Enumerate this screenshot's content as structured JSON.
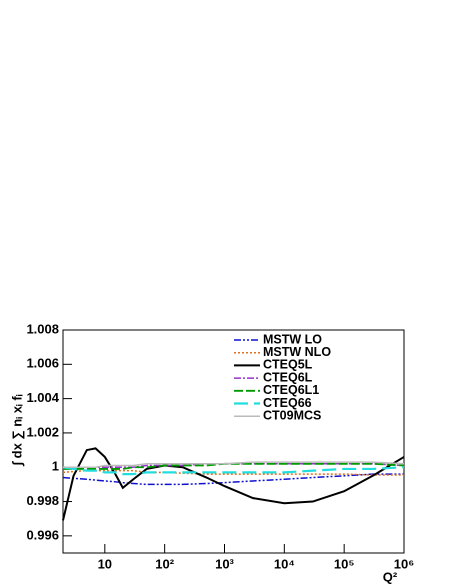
{
  "chart_data": {
    "type": "line",
    "log_x": true,
    "xlabel": "Q²",
    "ylabel": "∫ dx ∑ nᵢ xᵢ fᵢ",
    "x": [
      2,
      3,
      5,
      7,
      10,
      15,
      20,
      30,
      50,
      100,
      200,
      500,
      1000,
      3000,
      10000,
      30000,
      100000,
      300000,
      1000000
    ],
    "xlim": [
      2,
      1000000
    ],
    "xticks": [
      10,
      {
        "value": 100,
        "label": "10²"
      },
      {
        "value": 1000,
        "label": "10³"
      },
      {
        "value": 10000,
        "label": "10⁴"
      },
      {
        "value": 100000,
        "label": "10⁵"
      },
      {
        "value": 1000000,
        "label": "10⁶"
      }
    ],
    "ylim": [
      0.995,
      1.008
    ],
    "yticks": [
      0.996,
      0.998,
      1,
      1.002,
      1.004,
      1.006,
      1.008
    ],
    "series": [
      {
        "name": "MSTW LO",
        "color": "#1010d0",
        "dash": "7,2,2,2,2,2",
        "width": 1.5,
        "values": [
          0.9994,
          0.99935,
          0.9993,
          0.99925,
          0.9992,
          0.99915,
          0.9991,
          0.99905,
          0.999,
          0.999,
          0.999,
          0.99905,
          0.9991,
          0.9992,
          0.9993,
          0.9994,
          0.9995,
          0.9996,
          0.9996
        ]
      },
      {
        "name": "MSTW NLO",
        "color": "#e07020",
        "dash": "2,2",
        "width": 1.5,
        "values": [
          0.9997,
          0.99975,
          0.9998,
          0.9998,
          0.9998,
          0.9998,
          0.9998,
          0.9998,
          0.9997,
          0.9997,
          0.99965,
          0.9996,
          0.9996,
          0.9996,
          0.9996,
          0.9996,
          0.9996,
          0.99955,
          0.99955
        ]
      },
      {
        "name": "CTEQ5L",
        "color": "#000000",
        "dash": "none",
        "width": 2,
        "values": [
          0.9969,
          0.9995,
          1.001,
          1.0011,
          1.0006,
          0.9996,
          0.9988,
          0.9993,
          0.9999,
          1.0001,
          1.0,
          0.9994,
          0.9989,
          0.9982,
          0.9979,
          0.998,
          0.9986,
          0.9995,
          1.0006
        ]
      },
      {
        "name": "CTEQ6L",
        "color": "#9933cc",
        "dash": "7,2,2,2",
        "width": 1.5,
        "values": [
          0.9999,
          0.99995,
          1.0,
          1.0,
          1.0,
          1.0,
          1.0,
          1.0,
          1.0001,
          1.0001,
          1.0001,
          1.0002,
          1.0002,
          1.0002,
          1.0002,
          1.0002,
          1.0002,
          1.0002,
          1.0001
        ]
      },
      {
        "name": "CTEQ6L1",
        "color": "#009900",
        "dash": "9,3",
        "width": 1.8,
        "values": [
          0.9999,
          0.9999,
          0.9999,
          0.9999,
          0.9999,
          0.9999,
          0.9999,
          1.0,
          1.0,
          1.0001,
          1.0001,
          1.0001,
          1.0002,
          1.0002,
          1.0002,
          1.0002,
          1.0002,
          1.0002,
          1.0001
        ]
      },
      {
        "name": "CTEQ66",
        "color": "#22dddd",
        "dash": "14,6",
        "width": 2.2,
        "values": [
          1.0,
          0.9999,
          0.9998,
          0.9998,
          0.9997,
          0.9997,
          0.9996,
          0.9996,
          0.9997,
          0.9997,
          0.9997,
          0.9997,
          0.9997,
          0.9997,
          0.9997,
          0.9998,
          0.9999,
          0.9999,
          1.0
        ]
      },
      {
        "name": "CT09MCS",
        "color": "#bbbbbb",
        "dash": "none",
        "width": 1.5,
        "values": [
          1.0,
          1.0,
          1.0,
          1.0,
          1.0001,
          1.0001,
          1.0001,
          1.0001,
          1.0002,
          1.0002,
          1.0002,
          1.0002,
          1.0002,
          1.0003,
          1.0003,
          1.0003,
          1.0003,
          1.0003,
          1.0002
        ]
      }
    ]
  }
}
